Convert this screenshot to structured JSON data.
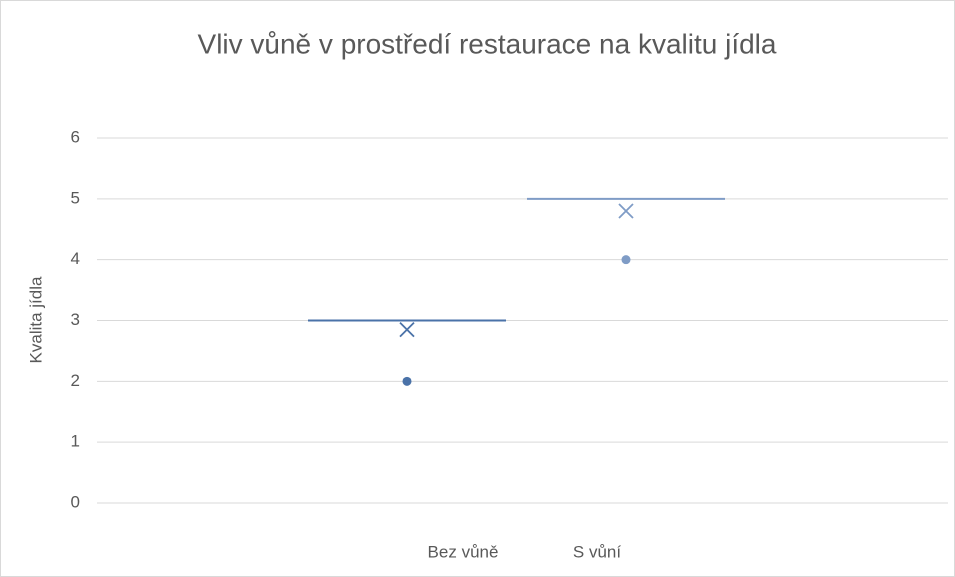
{
  "chart_data": {
    "type": "box",
    "title": "Vliv vůně v prostředí restaurace na kvalitu jídla",
    "y_label": "Kvalita jídla",
    "ylim": [
      0,
      6
    ],
    "yticks": [
      0,
      1,
      2,
      3,
      4,
      5,
      6
    ],
    "grid": true,
    "series": [
      {
        "name": "Bez vůně",
        "color": "#4a72a8",
        "min": 3,
        "q1": 3,
        "median": 3,
        "q3": 3,
        "max": 3,
        "mean": 2.85,
        "outliers": [
          2
        ]
      },
      {
        "name": "S vůní",
        "color": "#7f9cc6",
        "min": 5,
        "q1": 5,
        "median": 5,
        "q3": 5,
        "max": 5,
        "mean": 4.8,
        "outliers": [
          4
        ]
      }
    ]
  }
}
